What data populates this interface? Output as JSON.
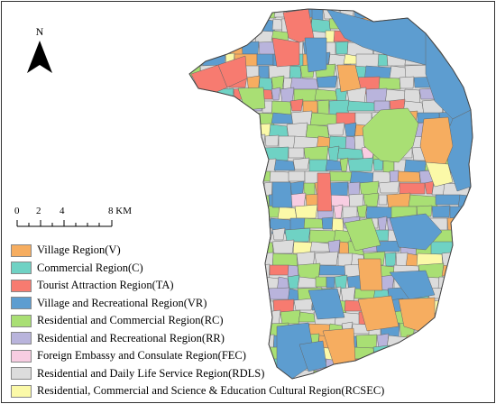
{
  "north_label": "N",
  "scale": {
    "ticks": [
      "0",
      "2",
      "4",
      "8 KM"
    ]
  },
  "legend": [
    {
      "label": "Village Region(V)",
      "color": "#f6ad60"
    },
    {
      "label": "Commercial Region(C)",
      "color": "#6fd2c4"
    },
    {
      "label": "Tourist Attraction Region(TA)",
      "color": "#f77b70"
    },
    {
      "label": "Village and Recreational Region(VR)",
      "color": "#5d9dd0"
    },
    {
      "label": "Residential and Commercial Region(RC)",
      "color": "#a9df74"
    },
    {
      "label": "Residential and Recreational Region(RR)",
      "color": "#b9b4dc"
    },
    {
      "label": "Foreign Embassy and Consulate Region(FEC)",
      "color": "#f8cde2"
    },
    {
      "label": "Residential and Daily Life Service Region(RDLS)",
      "color": "#dcdcdc"
    },
    {
      "label": "Residential, Commercial and Science & Education Cultural Region(RCSEC)",
      "color": "#fbf9a8"
    }
  ]
}
